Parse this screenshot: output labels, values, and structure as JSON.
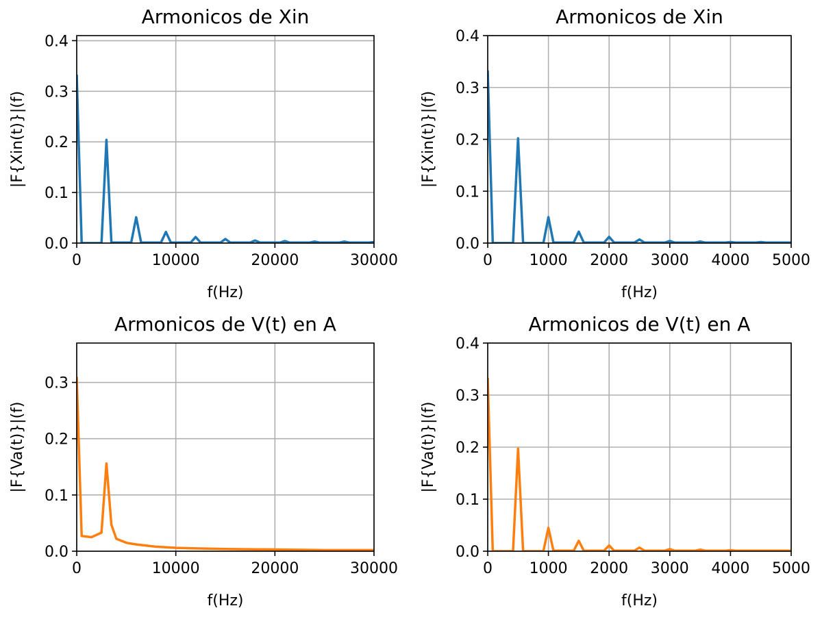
{
  "chart_data": [
    {
      "type": "line",
      "title": "Armonicos de Xin",
      "xlabel": "f(Hz)",
      "ylabel": "|F{Xin(t)}|(f)",
      "xlim": [
        0,
        30000
      ],
      "ylim": [
        0,
        0.41
      ],
      "xticks": [
        0,
        10000,
        20000,
        30000
      ],
      "xtick_labels": [
        "0",
        "10000",
        "20000",
        "30000"
      ],
      "yticks": [
        0,
        0.1,
        0.2,
        0.3,
        0.4
      ],
      "ytick_labels": [
        "0.0",
        "0.1",
        "0.2",
        "0.3",
        "0.4"
      ],
      "grid": true,
      "color": "#1f77b4",
      "series": [
        {
          "x": [
            0,
            500,
            2500,
            3000,
            3500,
            5500,
            6000,
            6500,
            8500,
            9000,
            9500,
            11500,
            12000,
            12500,
            14500,
            15000,
            15500,
            17500,
            18000,
            18500,
            20500,
            21000,
            21500,
            23500,
            24000,
            24500,
            26500,
            27000,
            27500,
            29500,
            30000
          ],
          "y": [
            0.333,
            0,
            0,
            0.204,
            0.001,
            0.001,
            0.051,
            0.001,
            0.001,
            0.022,
            0.001,
            0.001,
            0.012,
            0.001,
            0.001,
            0.008,
            0.001,
            0.001,
            0.005,
            0.001,
            0.001,
            0.004,
            0.001,
            0.001,
            0.003,
            0.001,
            0.001,
            0.003,
            0.001,
            0.001,
            0.002
          ]
        }
      ]
    },
    {
      "type": "line",
      "title": "Armonicos de Xin",
      "xlabel": "f(Hz)",
      "ylabel": "|F{Xin(t)}|(f)",
      "xlim": [
        0,
        5000
      ],
      "ylim": [
        0,
        0.4
      ],
      "xticks": [
        0,
        1000,
        2000,
        3000,
        4000,
        5000
      ],
      "xtick_labels": [
        "0",
        "1000",
        "2000",
        "3000",
        "4000",
        "5000"
      ],
      "yticks": [
        0,
        0.1,
        0.2,
        0.3,
        0.4
      ],
      "ytick_labels": [
        "0.0",
        "0.1",
        "0.2",
        "0.3",
        "0.4"
      ],
      "grid": true,
      "color": "#1f77b4",
      "series": [
        {
          "x": [
            0,
            83,
            417,
            500,
            583,
            917,
            1000,
            1083,
            1417,
            1500,
            1583,
            1917,
            2000,
            2083,
            2417,
            2500,
            2583,
            2917,
            3000,
            3083,
            3417,
            3500,
            3583,
            3917,
            4000,
            4083,
            4417,
            4500,
            4583,
            5000
          ],
          "y": [
            0.333,
            0,
            0,
            0.202,
            0,
            0,
            0.05,
            0.001,
            0.001,
            0.022,
            0.001,
            0.001,
            0.012,
            0.001,
            0.001,
            0.007,
            0.001,
            0.001,
            0.004,
            0.001,
            0.001,
            0.003,
            0.001,
            0.001,
            0.002,
            0.001,
            0.001,
            0.002,
            0.001,
            0.001
          ]
        }
      ]
    },
    {
      "type": "line",
      "title": "Armonicos de V(t) en A",
      "xlabel": "f(Hz)",
      "ylabel": "|F{Va(t)}|(f)",
      "xlim": [
        0,
        30000
      ],
      "ylim": [
        0,
        0.37
      ],
      "xticks": [
        0,
        10000,
        20000,
        30000
      ],
      "xtick_labels": [
        "0",
        "10000",
        "20000",
        "30000"
      ],
      "yticks": [
        0,
        0.1,
        0.2,
        0.3
      ],
      "ytick_labels": [
        "0.0",
        "0.1",
        "0.2",
        "0.3"
      ],
      "grid": true,
      "color": "#ff7f0e",
      "series": [
        {
          "x": [
            0,
            500,
            1500,
            2500,
            3000,
            3500,
            4000,
            5000,
            6000,
            7000,
            8000,
            10000,
            12000,
            15000,
            20000,
            25000,
            30000
          ],
          "y": [
            0.31,
            0.027,
            0.025,
            0.033,
            0.156,
            0.047,
            0.022,
            0.015,
            0.012,
            0.01,
            0.008,
            0.006,
            0.005,
            0.004,
            0.003,
            0.002,
            0.002
          ]
        }
      ]
    },
    {
      "type": "line",
      "title": "Armonicos de V(t) en A",
      "xlabel": "f(Hz)",
      "ylabel": "|F{Va(t)}|(f)",
      "xlim": [
        0,
        5000
      ],
      "ylim": [
        0,
        0.4
      ],
      "xticks": [
        0,
        1000,
        2000,
        3000,
        4000,
        5000
      ],
      "xtick_labels": [
        "0",
        "1000",
        "2000",
        "3000",
        "4000",
        "5000"
      ],
      "yticks": [
        0,
        0.1,
        0.2,
        0.3,
        0.4
      ],
      "ytick_labels": [
        "0.0",
        "0.1",
        "0.2",
        "0.3",
        "0.4"
      ],
      "grid": true,
      "color": "#ff7f0e",
      "series": [
        {
          "x": [
            0,
            83,
            417,
            500,
            583,
            917,
            1000,
            1083,
            1417,
            1500,
            1583,
            1917,
            2000,
            2083,
            2417,
            2500,
            2583,
            2917,
            3000,
            3083,
            3417,
            3500,
            3583,
            3917,
            4000,
            4083,
            4417,
            4500,
            4583,
            5000
          ],
          "y": [
            0.333,
            0,
            0,
            0.197,
            0,
            0,
            0.045,
            0.001,
            0.001,
            0.02,
            0.001,
            0.001,
            0.011,
            0.001,
            0.001,
            0.007,
            0.001,
            0.001,
            0.004,
            0.001,
            0.001,
            0.003,
            0.001,
            0.001,
            0.002,
            0.001,
            0.001,
            0.001,
            0.001,
            0.001
          ]
        }
      ]
    }
  ]
}
